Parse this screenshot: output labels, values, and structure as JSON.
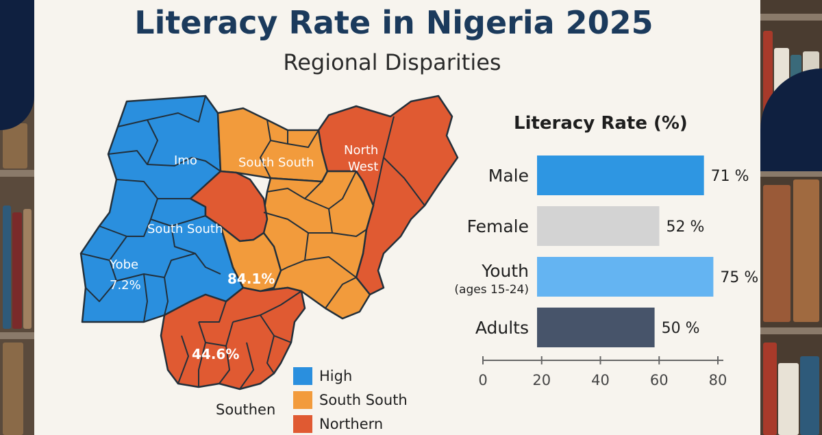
{
  "header": {
    "title": "Literacy Rate in Nigeria 2025",
    "subtitle": "Regional Disparities"
  },
  "map": {
    "labels": {
      "imo": "Imo",
      "south_south_top": "South South",
      "north_west_1": "North",
      "north_west_2": "West",
      "south_south_left": "South South",
      "yobe": "Yobe",
      "yobe_value": "7.2%",
      "center_value": "84.1%",
      "south_value": "44.6%",
      "southen": "Southen"
    },
    "colors": {
      "high": "#2a8fde",
      "south_south": "#f29b3c",
      "northern": "#e05a32",
      "border": "#222f3a"
    }
  },
  "legend": [
    {
      "label": "High",
      "color": "#2a8fde"
    },
    {
      "label": "South South",
      "color": "#f29b3c"
    },
    {
      "label": "Northern",
      "color": "#e05a32"
    }
  ],
  "chart_data": {
    "type": "bar",
    "orientation": "horizontal",
    "title": "Literacy Rate (%)",
    "categories": [
      "Male",
      "Female",
      "Youth",
      "Adults"
    ],
    "category_sublabels": [
      "",
      "",
      "(ages 15-24)",
      ""
    ],
    "values": [
      71,
      52,
      75,
      50
    ],
    "value_labels": [
      "71 %",
      "52 %",
      "75 %",
      "50 %"
    ],
    "colors": [
      "#2e96e2",
      "#d3d3d3",
      "#64b4f2",
      "#47546a"
    ],
    "xlim": [
      0,
      80
    ],
    "xticks": [
      "0",
      "20",
      "40",
      "60",
      "80"
    ],
    "grid": false
  }
}
